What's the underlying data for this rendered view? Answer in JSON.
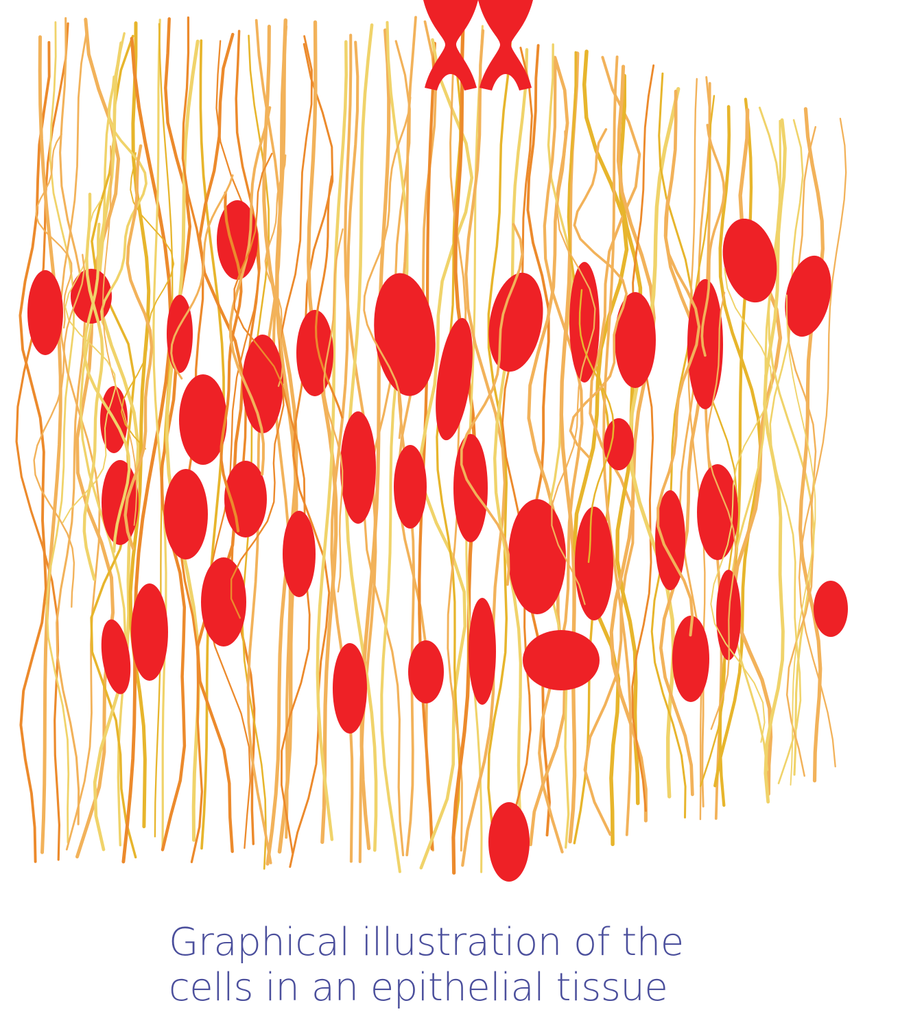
{
  "caption": {
    "line1": "Graphical illustration of the",
    "line2": "cells in an epithelial tissue"
  },
  "colors": {
    "nucleus": "#ee2126",
    "fiber_light": "#f0d36a",
    "fiber_mid": "#f2b25a",
    "fiber_dark": "#ec8a2c",
    "fiber_gold": "#e7b52c",
    "caption_text": "#4b4f9c",
    "background": "#ffffff"
  }
}
